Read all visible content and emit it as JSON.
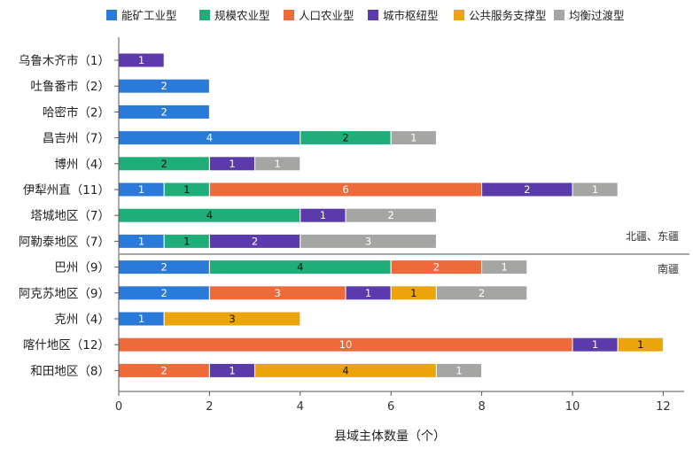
{
  "chart_data": {
    "type": "bar",
    "orientation": "horizontal",
    "stacked": true,
    "xlabel": "县域主体数量（个）",
    "xlim": [
      0,
      12.5
    ],
    "xticks": [
      0,
      2,
      4,
      6,
      8,
      10,
      12
    ],
    "grid": false,
    "legend_position": "top",
    "categories": [
      "乌鲁木齐市（1）",
      "吐鲁番市（2）",
      "哈密市（2）",
      "昌吉州（7）",
      "博州（4）",
      "伊犁州直（11）",
      "塔城地区（7）",
      "阿勒泰地区（7）",
      "巴州（9）",
      "阿克苏地区（9）",
      "克州（4）",
      "喀什地区（12）",
      "和田地区（8）"
    ],
    "series": [
      {
        "name": "能矿工业型",
        "color": "#2a7bd9",
        "text_color": "#ffffff",
        "values": [
          0,
          2,
          2,
          4,
          0,
          1,
          0,
          1,
          2,
          2,
          1,
          0,
          0
        ]
      },
      {
        "name": "规模农业型",
        "color": "#1fae7a",
        "text_color": "#111111",
        "values": [
          0,
          0,
          0,
          2,
          2,
          1,
          4,
          1,
          4,
          0,
          0,
          0,
          0
        ]
      },
      {
        "name": "人口农业型",
        "color": "#ee6a3a",
        "text_color": "#ffffff",
        "values": [
          0,
          0,
          0,
          0,
          0,
          6,
          0,
          0,
          2,
          3,
          0,
          10,
          2
        ]
      },
      {
        "name": "城市枢纽型",
        "color": "#5b3bab",
        "text_color": "#ffffff",
        "values": [
          1,
          0,
          0,
          0,
          1,
          2,
          1,
          2,
          0,
          1,
          0,
          1,
          1
        ]
      },
      {
        "name": "公共服务支撑型",
        "color": "#eba40a",
        "text_color": "#111111",
        "values": [
          0,
          0,
          0,
          0,
          0,
          0,
          0,
          0,
          0,
          1,
          3,
          1,
          4
        ]
      },
      {
        "name": "均衡过渡型",
        "color": "#a5a5a3",
        "text_color": "#ffffff",
        "values": [
          0,
          0,
          0,
          1,
          1,
          1,
          2,
          3,
          1,
          2,
          0,
          0,
          1
        ]
      }
    ],
    "annotations": [
      {
        "text": "北疆、东疆",
        "group": "north-east",
        "after_category_index": 7
      },
      {
        "text": "南疆",
        "group": "south",
        "after_category_index": 7
      }
    ]
  }
}
